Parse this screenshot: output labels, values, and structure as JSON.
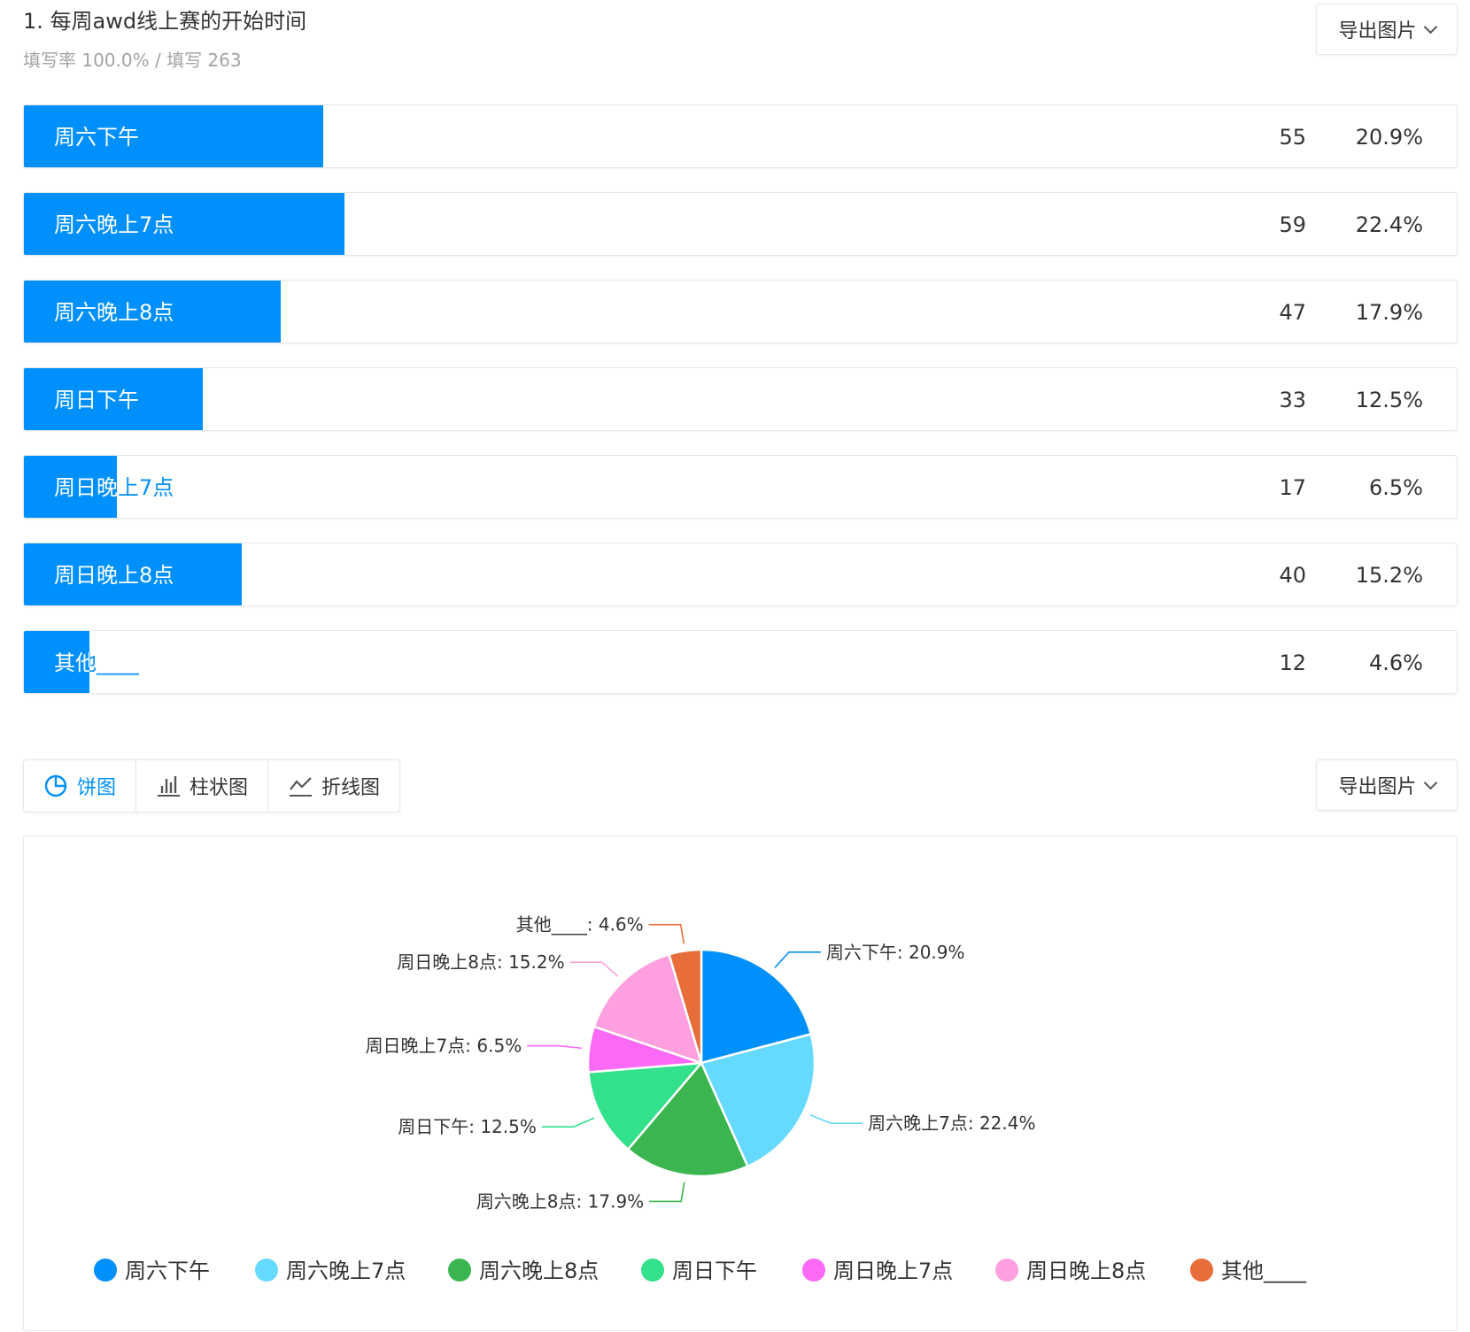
{
  "question": {
    "title": "1. 每周awd线上赛的开始时间",
    "stats": "填写率 100.0% / 填写 263",
    "export_label": "导出图片"
  },
  "results": [
    {
      "label": "周六下午",
      "count": "55",
      "percent": "20.9%",
      "share": 0.209
    },
    {
      "label": "周六晚上7点",
      "count": "59",
      "percent": "22.4%",
      "share": 0.224
    },
    {
      "label": "周六晚上8点",
      "count": "47",
      "percent": "17.9%",
      "share": 0.179
    },
    {
      "label": "周日下午",
      "count": "33",
      "percent": "12.5%",
      "share": 0.125
    },
    {
      "label": "周日晚上7点",
      "count": "17",
      "percent": "6.5%",
      "share": 0.065
    },
    {
      "label": "周日晚上8点",
      "count": "40",
      "percent": "15.2%",
      "share": 0.152
    },
    {
      "label": "其他____",
      "count": "12",
      "percent": "4.6%",
      "share": 0.046
    }
  ],
  "chart_tabs": [
    {
      "label": "饼图",
      "icon": "pie-chart-icon",
      "active": true
    },
    {
      "label": "柱状图",
      "icon": "bar-chart-icon",
      "active": false
    },
    {
      "label": "折线图",
      "icon": "line-chart-icon",
      "active": false
    }
  ],
  "chart_export_label": "导出图片",
  "chart_data": {
    "type": "pie",
    "categories": [
      "周六下午",
      "周六晚上7点",
      "周六晚上8点",
      "周日下午",
      "周日晚上7点",
      "周日晚上8点",
      "其他____"
    ],
    "values": [
      20.9,
      22.4,
      17.9,
      12.5,
      6.5,
      15.2,
      4.6
    ],
    "slice_labels": [
      "周六下午: 20.9%",
      "周六晚上7点: 22.4%",
      "周六晚上8点: 17.9%",
      "周日下午: 12.5%",
      "周日晚上7点: 6.5%",
      "周日晚上8点: 15.2%",
      "其他____: 4.6%"
    ],
    "colors": [
      "#0090fb",
      "#66d9ff",
      "#3ab54f",
      "#33e08c",
      "#fb6af5",
      "#fea0df",
      "#e76d3b"
    ],
    "legend": "bottom",
    "title": ""
  }
}
